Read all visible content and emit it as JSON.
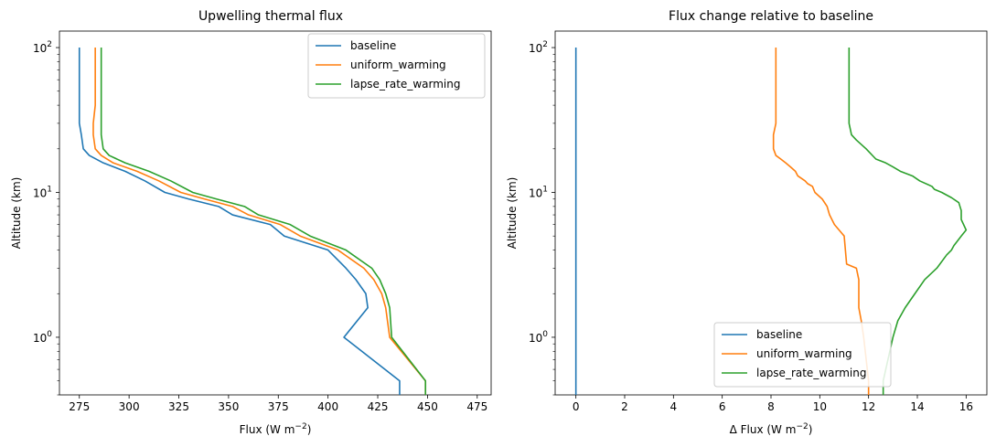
{
  "chart_data": [
    {
      "type": "line",
      "title": "Upwelling thermal flux",
      "xlabel": "Flux (W m",
      "xlabel_unit_exp": "−2",
      "xlabel_close": ")",
      "ylabel": "Altitude (km)",
      "xlim": [
        265,
        482
      ],
      "ylim": [
        0.4,
        130
      ],
      "yscale": "log",
      "xticks": [
        275,
        300,
        325,
        350,
        375,
        400,
        425,
        450,
        475
      ],
      "yticks": [
        {
          "value": 1,
          "base": "10",
          "exp": "0"
        },
        {
          "value": 10,
          "base": "10",
          "exp": "1"
        },
        {
          "value": 100,
          "base": "10",
          "exp": "2"
        }
      ],
      "legend_position": "upper right",
      "series": [
        {
          "name": "baseline",
          "color": "#1f77b4",
          "x": [
            436,
            436,
            408,
            420,
            419,
            414,
            409,
            400,
            378,
            371,
            352,
            345,
            330,
            318,
            308,
            298,
            287,
            280,
            277,
            276,
            275,
            275,
            275,
            275
          ],
          "y": [
            0.4,
            0.5,
            1.0,
            1.6,
            2.0,
            2.5,
            3.0,
            4.0,
            5.0,
            6.0,
            7.0,
            8.0,
            9.0,
            10.0,
            12.0,
            14.0,
            16.0,
            18.0,
            20.0,
            25.0,
            30.0,
            40.0,
            50.0,
            100.0
          ]
        },
        {
          "name": "uniform_warming",
          "color": "#ff7f0e",
          "x": [
            449,
            449,
            431,
            429,
            427,
            423,
            418,
            405,
            386,
            376,
            360,
            352,
            338,
            326,
            315,
            304,
            292,
            286,
            283,
            282,
            282,
            283,
            283,
            283
          ],
          "y": [
            0.4,
            0.5,
            1.0,
            1.6,
            2.0,
            2.5,
            3.0,
            4.0,
            5.0,
            6.0,
            7.0,
            8.0,
            9.0,
            10.0,
            12.0,
            14.0,
            16.0,
            18.0,
            20.0,
            25.0,
            30.0,
            40.0,
            50.0,
            100.0
          ]
        },
        {
          "name": "lapse_rate_warming",
          "color": "#2ca02c",
          "x": [
            449,
            449,
            432,
            431,
            429,
            426,
            422,
            409,
            391,
            381,
            365,
            358,
            344,
            332,
            321,
            310,
            298,
            290,
            287,
            286,
            286,
            286,
            286,
            286
          ],
          "y": [
            0.4,
            0.5,
            1.0,
            1.6,
            2.0,
            2.5,
            3.0,
            4.0,
            5.0,
            6.0,
            7.0,
            8.0,
            9.0,
            10.0,
            12.0,
            14.0,
            16.0,
            18.0,
            20.0,
            25.0,
            30.0,
            40.0,
            50.0,
            100.0
          ]
        }
      ]
    },
    {
      "type": "line",
      "title": "Flux change relative to baseline",
      "xlabel": "Δ Flux (W m",
      "xlabel_unit_exp": "−2",
      "xlabel_close": ")",
      "ylabel": "Altitude (km)",
      "xlim": [
        -0.85,
        16.85
      ],
      "ylim": [
        0.4,
        130
      ],
      "yscale": "log",
      "xticks": [
        0,
        2,
        4,
        6,
        8,
        10,
        12,
        14,
        16
      ],
      "yticks": [
        {
          "value": 1,
          "base": "10",
          "exp": "0"
        },
        {
          "value": 10,
          "base": "10",
          "exp": "1"
        },
        {
          "value": 100,
          "base": "10",
          "exp": "2"
        }
      ],
      "legend_position": "lower center",
      "series": [
        {
          "name": "baseline",
          "color": "#1f77b4",
          "x": [
            0,
            0
          ],
          "y": [
            0.4,
            100.0
          ]
        },
        {
          "name": "uniform_warming",
          "color": "#ff7f0e",
          "x": [
            12.0,
            12.0,
            11.8,
            11.7,
            11.6,
            11.6,
            11.6,
            11.5,
            11.1,
            11.0,
            10.6,
            10.4,
            10.3,
            10.1,
            9.8,
            9.7,
            9.5,
            9.4,
            9.1,
            9.0,
            8.8,
            8.6,
            8.4,
            8.2,
            8.1,
            8.1,
            8.2,
            8.2,
            8.2
          ],
          "y": [
            0.4,
            0.5,
            1.0,
            1.3,
            1.6,
            2.0,
            2.5,
            3.0,
            3.2,
            5.0,
            6.0,
            7.0,
            8.0,
            9.0,
            10.0,
            11.0,
            11.5,
            12.0,
            13.0,
            14.0,
            15.0,
            16.0,
            17.0,
            18.0,
            20.0,
            25.0,
            30.0,
            50.0,
            100.0
          ]
        },
        {
          "name": "lapse_rate_warming",
          "color": "#2ca02c",
          "x": [
            12.6,
            12.6,
            13.0,
            13.2,
            13.5,
            13.9,
            14.3,
            14.8,
            15.2,
            15.4,
            15.5,
            15.8,
            16.0,
            15.8,
            15.8,
            15.7,
            15.4,
            15.0,
            14.7,
            14.6,
            14.1,
            13.8,
            13.3,
            13.0,
            12.7,
            12.3,
            11.9,
            11.5,
            11.3,
            11.2,
            11.2,
            11.2
          ],
          "y": [
            0.4,
            0.5,
            1.0,
            1.3,
            1.6,
            2.0,
            2.5,
            3.0,
            3.7,
            4.0,
            4.3,
            5.0,
            5.5,
            6.5,
            7.5,
            8.5,
            9.2,
            10.0,
            10.5,
            11.0,
            12.0,
            13.0,
            14.0,
            15.0,
            16.0,
            17.0,
            20.0,
            23.0,
            25.0,
            30.0,
            50.0,
            100.0
          ]
        }
      ]
    }
  ]
}
